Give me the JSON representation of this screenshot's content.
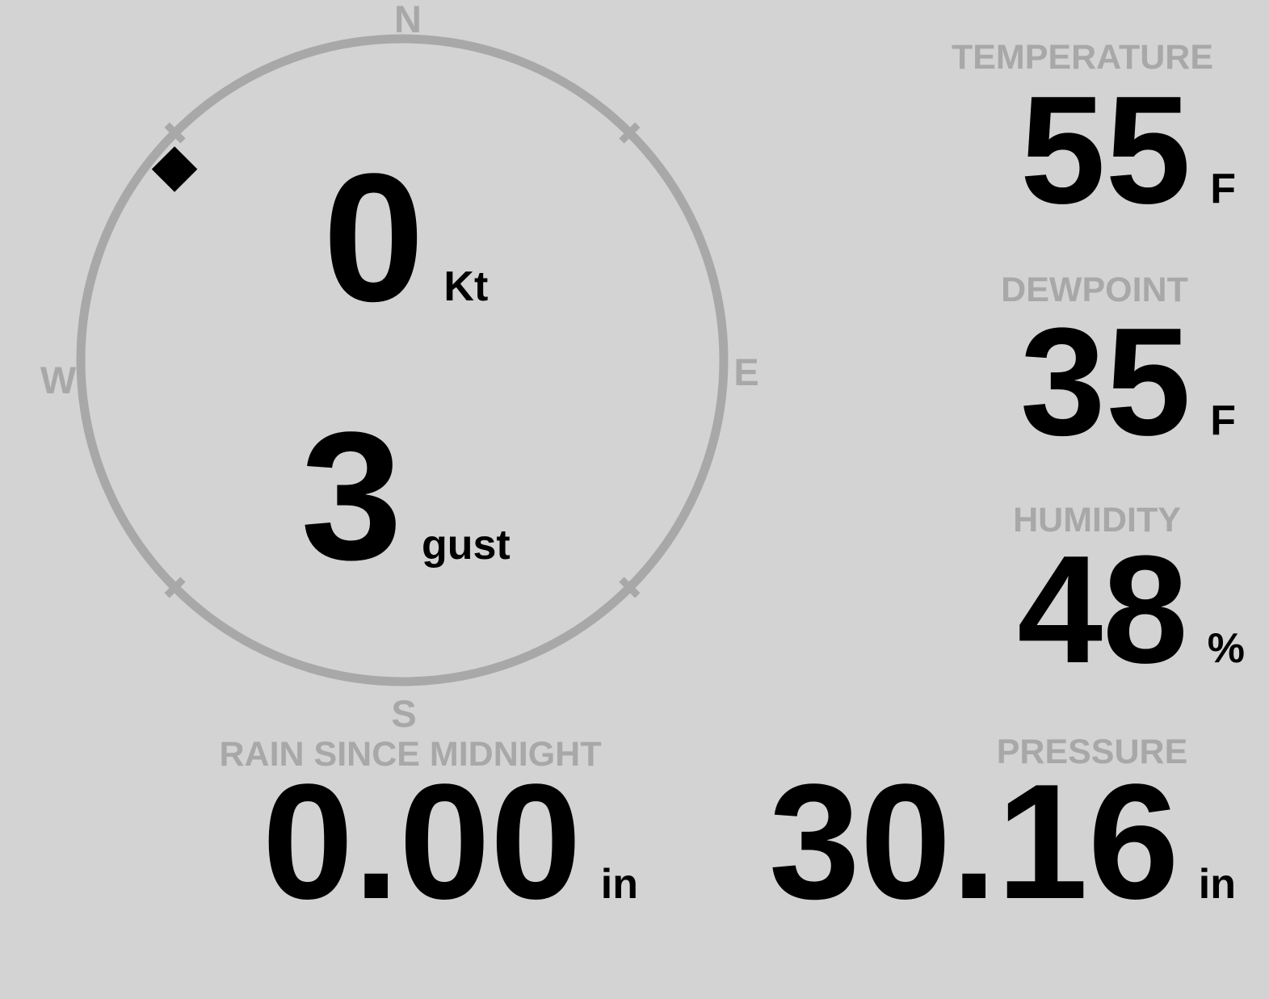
{
  "colors": {
    "background": "#d3d3d3",
    "muted": "#a8a8a8",
    "value": "#000000"
  },
  "compass": {
    "cardinals": {
      "north": "N",
      "east": "E",
      "south": "S",
      "west": "W"
    },
    "wind_speed": {
      "value": "0",
      "unit": "Kt"
    },
    "wind_gust": {
      "value": "3",
      "unit": "gust"
    },
    "wind_direction_deg": 310
  },
  "metrics": {
    "temperature": {
      "label": "TEMPERATURE",
      "value": "55",
      "unit": "F"
    },
    "dewpoint": {
      "label": "DEWPOINT",
      "value": "35",
      "unit": "F"
    },
    "humidity": {
      "label": "HUMIDITY",
      "value": "48",
      "unit": "%"
    },
    "rain_since_midnight": {
      "label": "RAIN SINCE MIDNIGHT",
      "value": "0.00",
      "unit": "in"
    },
    "pressure": {
      "label": "PRESSURE",
      "value": "30.16",
      "unit": "in"
    }
  }
}
